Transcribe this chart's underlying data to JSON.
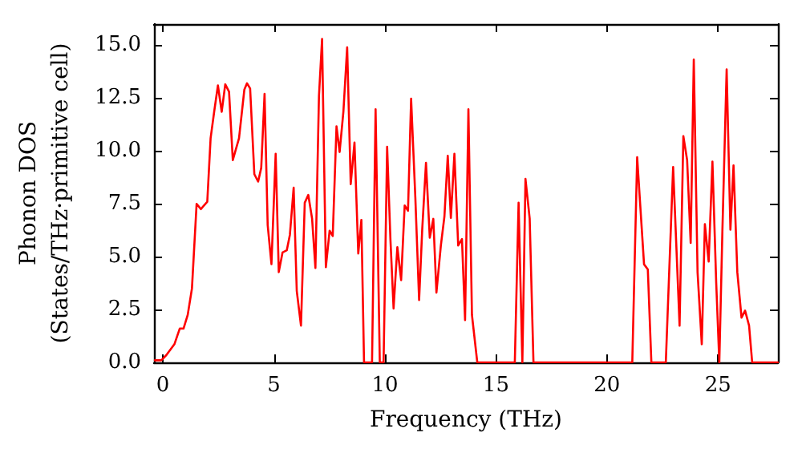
{
  "chart_data": {
    "type": "line",
    "xlabel": "Frequency (THz)",
    "ylabel": "Phonon DOS\n(States/THz·primitive cell)",
    "xlim": [
      -0.4,
      27.7
    ],
    "ylim": [
      0,
      16
    ],
    "xticks": [
      0,
      5,
      10,
      15,
      20,
      25
    ],
    "yticks": [
      {
        "value": 0,
        "label": "0.0"
      },
      {
        "value": 2.5,
        "label": "2.5"
      },
      {
        "value": 5,
        "label": "5.0"
      },
      {
        "value": 7.5,
        "label": "7.5"
      },
      {
        "value": 10,
        "label": "10.0"
      },
      {
        "value": 12.5,
        "label": "12.5"
      },
      {
        "value": 15,
        "label": "15.0"
      }
    ],
    "grid": false,
    "marker": "none",
    "line_style": "solid",
    "series": [
      {
        "color": "#ff0000",
        "x": [
          -0.36,
          -0.07,
          0.16,
          0.52,
          0.76,
          0.93,
          1.12,
          1.31,
          1.52,
          1.71,
          2.0,
          2.15,
          2.31,
          2.48,
          2.65,
          2.81,
          2.98,
          3.15,
          3.43,
          3.67,
          3.79,
          3.93,
          4.12,
          4.29,
          4.43,
          4.58,
          4.72,
          4.89,
          5.08,
          5.22,
          5.39,
          5.58,
          5.72,
          5.89,
          6.03,
          6.22,
          6.39,
          6.55,
          6.72,
          6.87,
          7.03,
          7.17,
          7.34,
          7.51,
          7.65,
          7.82,
          7.96,
          8.13,
          8.3,
          8.46,
          8.63,
          8.8,
          8.94,
          9.06,
          9.42,
          9.58,
          9.77,
          9.94,
          10.1,
          10.25,
          10.39,
          10.56,
          10.73,
          10.89,
          11.04,
          11.18,
          11.37,
          11.54,
          11.68,
          11.85,
          12.02,
          12.18,
          12.32,
          12.52,
          12.68,
          12.83,
          12.97,
          13.13,
          13.3,
          13.47,
          13.61,
          13.76,
          13.92,
          14.16,
          15.85,
          16.02,
          16.19,
          16.33,
          16.52,
          16.69,
          21.14,
          21.36,
          21.67,
          21.84,
          22.0,
          22.65,
          22.98,
          23.27,
          23.44,
          23.61,
          23.77,
          23.91,
          24.08,
          24.27,
          24.41,
          24.58,
          24.75,
          24.92,
          25.06,
          25.2,
          25.39,
          25.56,
          25.7,
          25.87,
          26.06,
          26.22,
          26.4,
          26.54,
          27.7
        ],
        "values": [
          0.1,
          0.1,
          0.35,
          0.86,
          1.6,
          1.6,
          2.25,
          3.5,
          7.5,
          7.25,
          7.6,
          10.6,
          11.85,
          13.1,
          11.85,
          13.15,
          12.8,
          9.57,
          10.6,
          12.9,
          13.2,
          12.95,
          8.9,
          8.55,
          9.2,
          12.7,
          6.5,
          4.65,
          9.87,
          4.27,
          5.2,
          5.3,
          6.03,
          8.26,
          3.38,
          1.74,
          7.55,
          7.92,
          6.8,
          4.47,
          12.6,
          15.3,
          4.5,
          6.23,
          5.98,
          11.16,
          9.95,
          11.85,
          14.9,
          8.43,
          10.4,
          5.15,
          6.74,
          0,
          0,
          11.97,
          0,
          0,
          10.2,
          5.78,
          2.55,
          5.45,
          3.89,
          7.42,
          7.17,
          12.47,
          7.8,
          2.95,
          6.28,
          9.44,
          5.9,
          6.79,
          3.3,
          5.53,
          6.9,
          9.77,
          6.84,
          9.87,
          5.53,
          5.83,
          2.0,
          11.97,
          2.24,
          0,
          0,
          7.55,
          0,
          8.68,
          6.8,
          0,
          0,
          9.7,
          4.64,
          4.4,
          0,
          0,
          9.24,
          1.74,
          10.7,
          9.57,
          5.65,
          14.32,
          4.27,
          0.86,
          6.54,
          4.77,
          9.5,
          3.76,
          0,
          6.28,
          13.86,
          6.28,
          9.32,
          4.27,
          2.12,
          2.45,
          1.74,
          0,
          0
        ]
      }
    ]
  }
}
